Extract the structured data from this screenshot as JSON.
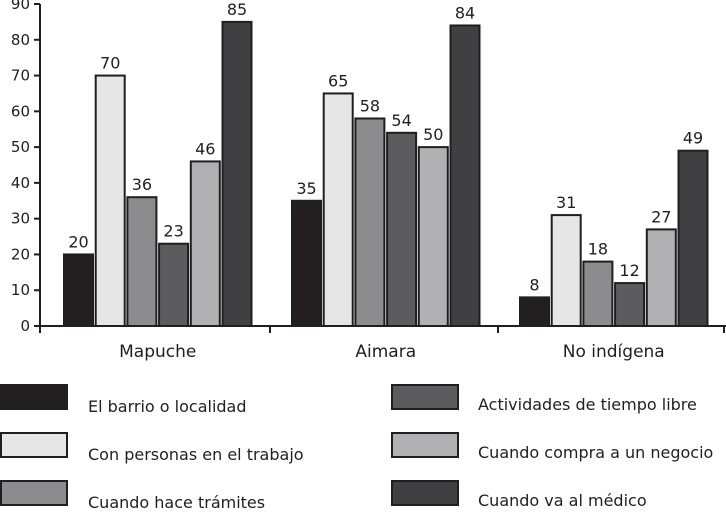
{
  "chart_data": {
    "type": "bar",
    "title": "",
    "xlabel": "",
    "ylabel": "",
    "ylim": [
      0,
      90
    ],
    "yticks": [
      0,
      10,
      20,
      30,
      40,
      50,
      60,
      70,
      80,
      90
    ],
    "grid": false,
    "legend_position": "bottom",
    "categories": [
      "Mapuche",
      "Aimara",
      "No indígena"
    ],
    "series": [
      {
        "name": "El barrio o localidad",
        "color": "#231f20",
        "values": [
          20,
          35,
          8
        ]
      },
      {
        "name": "Con personas en el trabajo",
        "color": "#e6e6e7",
        "values": [
          70,
          65,
          31
        ]
      },
      {
        "name": "Cuando hace trámites",
        "color": "#8c8c8e",
        "values": [
          36,
          58,
          18
        ]
      },
      {
        "name": "Actividades de tiempo libre",
        "color": "#5c5c5e",
        "values": [
          23,
          54,
          12
        ]
      },
      {
        "name": "Cuando compra a un negocio",
        "color": "#b1b1b3",
        "values": [
          46,
          50,
          27
        ]
      },
      {
        "name": "Cuando va al médico",
        "color": "#404042",
        "values": [
          85,
          84,
          49
        ]
      }
    ]
  }
}
